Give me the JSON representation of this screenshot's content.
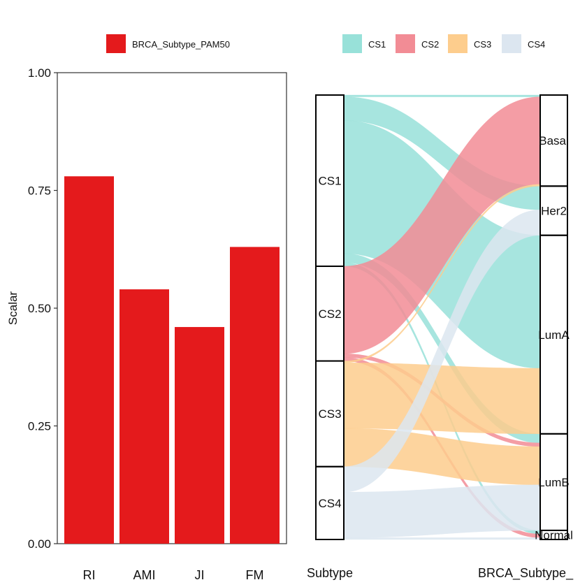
{
  "chart_data": [
    {
      "type": "bar",
      "legend": {
        "position": "top",
        "entries": [
          "BRCA_Subtype_PAM50"
        ]
      },
      "categories": [
        "RI",
        "AMI",
        "JI",
        "FM"
      ],
      "series": [
        {
          "name": "BRCA_Subtype_PAM50",
          "values": [
            0.78,
            0.54,
            0.46,
            0.63
          ],
          "color": "#E41A1C"
        }
      ],
      "ylabel": "Scalar",
      "ylim": [
        0,
        1
      ],
      "yticks": [
        "0.00",
        "0.25",
        "0.50",
        "0.75",
        "1.00"
      ],
      "grid": false
    },
    {
      "type": "alluvial",
      "legend": {
        "position": "top",
        "entries": [
          "CS1",
          "CS2",
          "CS3",
          "CS4"
        ]
      },
      "axes": [
        "Subtype",
        "BRCA_Subtype_"
      ],
      "left_nodes": [
        {
          "name": "CS1",
          "color": "#98E1D9"
        },
        {
          "name": "CS2",
          "color": "#F28C95"
        },
        {
          "name": "CS3",
          "color": "#FDCD8D"
        },
        {
          "name": "CS4",
          "color": "#DCE6F0"
        }
      ],
      "right_nodes": [
        "Basal",
        "Her2",
        "LumA",
        "LumB",
        "Normal"
      ],
      "flows": [
        {
          "from": "CS1",
          "to": "Basal",
          "value": 1
        },
        {
          "from": "CS1",
          "to": "Her2",
          "value": 13
        },
        {
          "from": "CS1",
          "to": "LumA",
          "value": 73
        },
        {
          "from": "CS1",
          "to": "LumB",
          "value": 5
        },
        {
          "from": "CS1",
          "to": "Normal",
          "value": 2
        },
        {
          "from": "CS2",
          "to": "Basal",
          "value": 48
        },
        {
          "from": "CS2",
          "to": "LumB",
          "value": 2
        },
        {
          "from": "CS2",
          "to": "Normal",
          "value": 2
        },
        {
          "from": "CS3",
          "to": "Basal",
          "value": 1
        },
        {
          "from": "CS3",
          "to": "LumA",
          "value": 36
        },
        {
          "from": "CS3",
          "to": "LumB",
          "value": 21
        },
        {
          "from": "CS4",
          "to": "Her2",
          "value": 14
        },
        {
          "from": "CS4",
          "to": "LumB",
          "value": 25
        },
        {
          "from": "CS4",
          "to": "Normal",
          "value": 1
        }
      ]
    }
  ]
}
